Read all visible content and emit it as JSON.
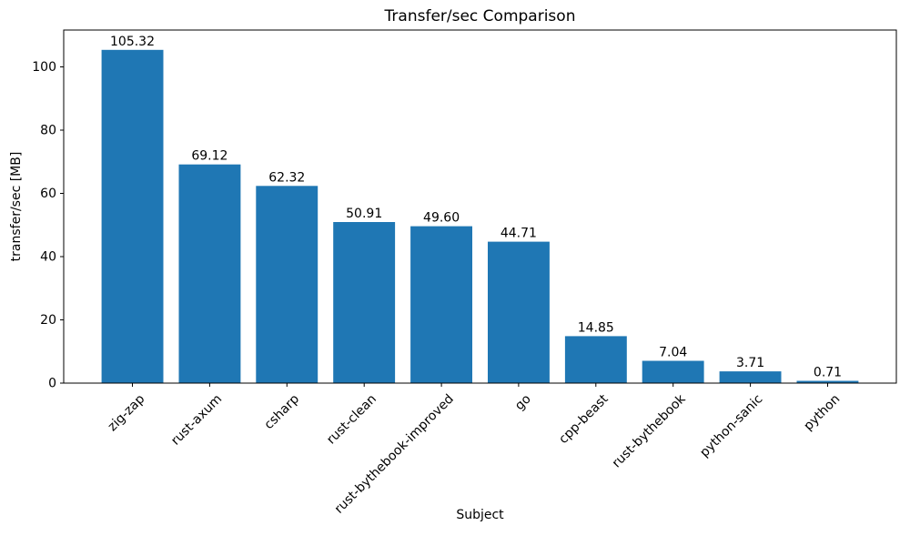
{
  "chart_data": {
    "type": "bar",
    "title": "Transfer/sec Comparison",
    "xlabel": "Subject",
    "ylabel": "transfer/sec [MB]",
    "categories": [
      "zig-zap",
      "rust-axum",
      "csharp",
      "rust-clean",
      "rust-bythebook-improved",
      "go",
      "cpp-beast",
      "rust-bythebook",
      "python-sanic",
      "python"
    ],
    "values": [
      105.32,
      69.12,
      62.32,
      50.91,
      49.6,
      44.71,
      14.85,
      7.04,
      3.71,
      0.71
    ],
    "value_labels": [
      "105.32",
      "69.12",
      "62.32",
      "50.91",
      "49.60",
      "44.71",
      "14.85",
      "7.04",
      "3.71",
      "0.71"
    ],
    "yticks": [
      0,
      20,
      40,
      60,
      80,
      100
    ],
    "ylim": [
      0,
      111.6
    ],
    "bar_color": "#1f77b4",
    "axis_color": "#000000",
    "xtick_rotation": 45,
    "grid": false,
    "legend": "none"
  }
}
